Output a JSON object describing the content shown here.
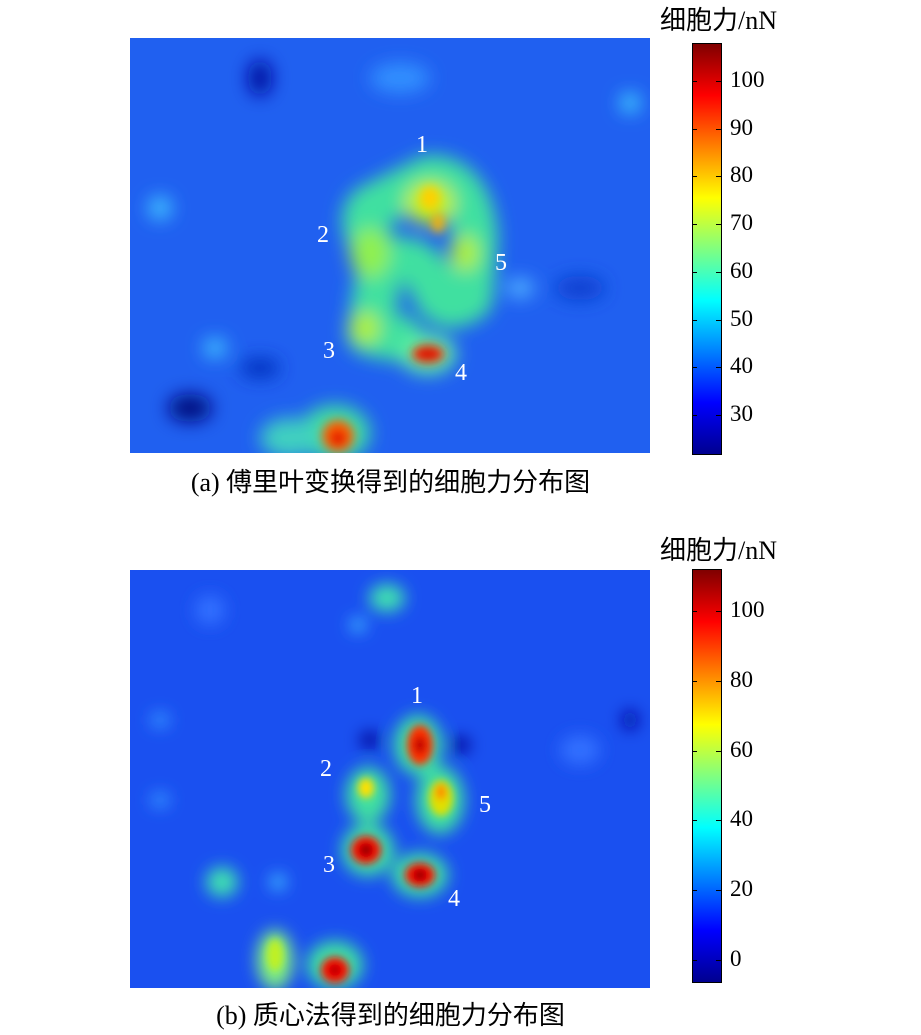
{
  "chart_data": [
    {
      "type": "heatmap",
      "title": "",
      "caption": "(a) 傅里叶变换得到的细胞力分布图",
      "colorbar_label": "细胞力/nN",
      "colorbar_ticks": [
        30,
        40,
        50,
        60,
        70,
        80,
        90,
        100
      ],
      "colorbar_range": [
        22,
        108
      ],
      "colormap": "jet",
      "background_value": 40,
      "annotations": [
        "1",
        "2",
        "3",
        "4",
        "5"
      ]
    },
    {
      "type": "heatmap",
      "title": "",
      "caption": "(b) 质心法得到的细胞力分布图",
      "colorbar_label": "细胞力/nN",
      "colorbar_ticks": [
        0,
        20,
        40,
        60,
        80,
        100
      ],
      "colorbar_range": [
        -6,
        112
      ],
      "colormap": "jet",
      "background_value": 10,
      "annotations": [
        "1",
        "2",
        "3",
        "4",
        "5"
      ]
    }
  ],
  "colors": {
    "jet_stops": [
      "#00008f",
      "#0000ff",
      "#0080ff",
      "#00ffff",
      "#80ff80",
      "#ffff00",
      "#ff8000",
      "#ff0000",
      "#800000"
    ]
  }
}
